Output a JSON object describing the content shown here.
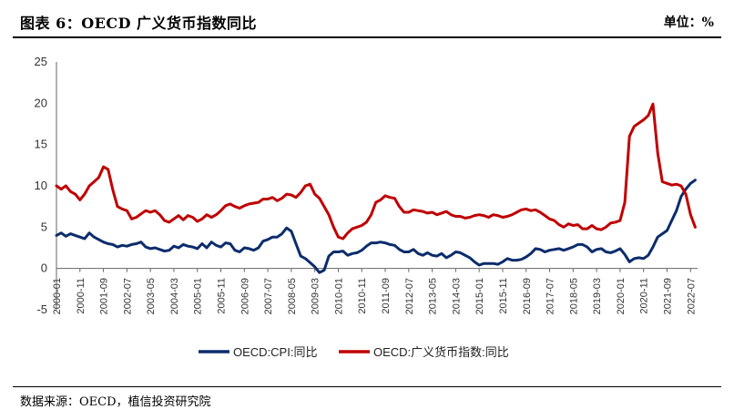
{
  "header": {
    "title": "图表 6：OECD 广义货币指数同比",
    "unit": "单位：%"
  },
  "footer": {
    "source": "数据来源：OECD，植信投资研究院"
  },
  "chart_data": {
    "type": "line",
    "title": "图表 6：OECD 广义货币指数同比",
    "ylim": [
      -5,
      25
    ],
    "yticks": [
      -5,
      0,
      5,
      10,
      15,
      20,
      25
    ],
    "grid": false,
    "legend_position": "bottom",
    "x_tick_labels": [
      "2000-01",
      "2000-11",
      "2001-09",
      "2002-07",
      "2003-05",
      "2004-03",
      "2005-01",
      "2005-11",
      "2006-09",
      "2007-07",
      "2008-05",
      "2009-03",
      "2010-01",
      "2010-11",
      "2011-09",
      "2012-07",
      "2013-05",
      "2014-03",
      "2015-01",
      "2015-11",
      "2016-09",
      "2017-07",
      "2018-05",
      "2019-03",
      "2020-01",
      "2020-11",
      "2021-09",
      "2022-07"
    ],
    "series": [
      {
        "name": "OECD:CPI:同比",
        "color": "#0c2c6b",
        "points": [
          [
            "2000-01",
            4.0
          ],
          [
            "2000-03",
            4.3
          ],
          [
            "2000-05",
            3.9
          ],
          [
            "2000-07",
            4.2
          ],
          [
            "2000-09",
            4.0
          ],
          [
            "2000-11",
            3.8
          ],
          [
            "2001-01",
            3.6
          ],
          [
            "2001-03",
            4.3
          ],
          [
            "2001-05",
            3.8
          ],
          [
            "2001-07",
            3.5
          ],
          [
            "2001-09",
            3.2
          ],
          [
            "2001-11",
            3.0
          ],
          [
            "2002-01",
            2.9
          ],
          [
            "2002-03",
            2.6
          ],
          [
            "2002-05",
            2.8
          ],
          [
            "2002-07",
            2.7
          ],
          [
            "2002-09",
            2.9
          ],
          [
            "2002-11",
            3.0
          ],
          [
            "2003-01",
            3.2
          ],
          [
            "2003-03",
            2.6
          ],
          [
            "2003-05",
            2.4
          ],
          [
            "2003-07",
            2.5
          ],
          [
            "2003-09",
            2.3
          ],
          [
            "2003-11",
            2.1
          ],
          [
            "2004-01",
            2.2
          ],
          [
            "2004-03",
            2.7
          ],
          [
            "2004-05",
            2.5
          ],
          [
            "2004-07",
            2.9
          ],
          [
            "2004-09",
            2.7
          ],
          [
            "2004-11",
            2.6
          ],
          [
            "2005-01",
            2.4
          ],
          [
            "2005-03",
            3.0
          ],
          [
            "2005-05",
            2.5
          ],
          [
            "2005-07",
            3.2
          ],
          [
            "2005-09",
            2.8
          ],
          [
            "2005-11",
            2.6
          ],
          [
            "2006-01",
            3.1
          ],
          [
            "2006-03",
            3.0
          ],
          [
            "2006-05",
            2.2
          ],
          [
            "2006-07",
            2.0
          ],
          [
            "2006-09",
            2.5
          ],
          [
            "2006-11",
            2.4
          ],
          [
            "2007-01",
            2.2
          ],
          [
            "2007-03",
            2.5
          ],
          [
            "2007-05",
            3.3
          ],
          [
            "2007-07",
            3.5
          ],
          [
            "2007-09",
            3.8
          ],
          [
            "2007-11",
            3.8
          ],
          [
            "2008-01",
            4.2
          ],
          [
            "2008-03",
            4.9
          ],
          [
            "2008-05",
            4.5
          ],
          [
            "2008-07",
            3.0
          ],
          [
            "2008-09",
            1.5
          ],
          [
            "2008-11",
            1.2
          ],
          [
            "2009-01",
            0.7
          ],
          [
            "2009-03",
            0.2
          ],
          [
            "2009-05",
            -0.5
          ],
          [
            "2009-07",
            -0.2
          ],
          [
            "2009-09",
            1.5
          ],
          [
            "2009-11",
            2.0
          ],
          [
            "2010-01",
            2.0
          ],
          [
            "2010-03",
            2.1
          ],
          [
            "2010-05",
            1.6
          ],
          [
            "2010-07",
            1.8
          ],
          [
            "2010-09",
            1.9
          ],
          [
            "2010-11",
            2.2
          ],
          [
            "2011-01",
            2.7
          ],
          [
            "2011-03",
            3.1
          ],
          [
            "2011-05",
            3.1
          ],
          [
            "2011-07",
            3.2
          ],
          [
            "2011-09",
            3.1
          ],
          [
            "2011-11",
            2.9
          ],
          [
            "2012-01",
            2.8
          ],
          [
            "2012-03",
            2.3
          ],
          [
            "2012-05",
            2.0
          ],
          [
            "2012-07",
            2.0
          ],
          [
            "2012-09",
            2.3
          ],
          [
            "2012-11",
            1.8
          ],
          [
            "2013-01",
            1.6
          ],
          [
            "2013-03",
            1.9
          ],
          [
            "2013-05",
            1.6
          ],
          [
            "2013-07",
            1.5
          ],
          [
            "2013-09",
            1.8
          ],
          [
            "2013-11",
            1.3
          ],
          [
            "2014-01",
            1.6
          ],
          [
            "2014-03",
            2.0
          ],
          [
            "2014-05",
            1.9
          ],
          [
            "2014-07",
            1.6
          ],
          [
            "2014-09",
            1.3
          ],
          [
            "2014-11",
            0.8
          ],
          [
            "2015-01",
            0.4
          ],
          [
            "2015-03",
            0.6
          ],
          [
            "2015-05",
            0.6
          ],
          [
            "2015-07",
            0.6
          ],
          [
            "2015-09",
            0.5
          ],
          [
            "2015-11",
            0.8
          ],
          [
            "2016-01",
            1.2
          ],
          [
            "2016-03",
            1.0
          ],
          [
            "2016-05",
            1.0
          ],
          [
            "2016-07",
            1.1
          ],
          [
            "2016-09",
            1.4
          ],
          [
            "2016-11",
            1.8
          ],
          [
            "2017-01",
            2.4
          ],
          [
            "2017-03",
            2.3
          ],
          [
            "2017-05",
            2.0
          ],
          [
            "2017-07",
            2.2
          ],
          [
            "2017-09",
            2.3
          ],
          [
            "2017-11",
            2.4
          ],
          [
            "2018-01",
            2.2
          ],
          [
            "2018-03",
            2.4
          ],
          [
            "2018-05",
            2.6
          ],
          [
            "2018-07",
            2.9
          ],
          [
            "2018-09",
            2.9
          ],
          [
            "2018-11",
            2.6
          ],
          [
            "2019-01",
            2.0
          ],
          [
            "2019-03",
            2.3
          ],
          [
            "2019-05",
            2.4
          ],
          [
            "2019-07",
            2.0
          ],
          [
            "2019-09",
            1.9
          ],
          [
            "2019-11",
            2.1
          ],
          [
            "2020-01",
            2.4
          ],
          [
            "2020-03",
            1.7
          ],
          [
            "2020-05",
            0.8
          ],
          [
            "2020-07",
            1.2
          ],
          [
            "2020-09",
            1.3
          ],
          [
            "2020-11",
            1.2
          ],
          [
            "2021-01",
            1.6
          ],
          [
            "2021-03",
            2.6
          ],
          [
            "2021-05",
            3.8
          ],
          [
            "2021-07",
            4.2
          ],
          [
            "2021-09",
            4.6
          ],
          [
            "2021-11",
            5.8
          ],
          [
            "2022-01",
            7.0
          ],
          [
            "2022-03",
            8.7
          ],
          [
            "2022-05",
            9.6
          ],
          [
            "2022-07",
            10.3
          ],
          [
            "2022-09",
            10.7
          ]
        ]
      },
      {
        "name": "OECD:广义货币指数:同比",
        "color": "#c00000",
        "points": [
          [
            "2000-01",
            10.0
          ],
          [
            "2000-03",
            9.6
          ],
          [
            "2000-05",
            10.0
          ],
          [
            "2000-07",
            9.3
          ],
          [
            "2000-09",
            9.0
          ],
          [
            "2000-11",
            8.3
          ],
          [
            "2001-01",
            9.0
          ],
          [
            "2001-03",
            10.0
          ],
          [
            "2001-05",
            10.5
          ],
          [
            "2001-07",
            11.0
          ],
          [
            "2001-09",
            12.3
          ],
          [
            "2001-11",
            12.0
          ],
          [
            "2002-01",
            9.5
          ],
          [
            "2002-03",
            7.5
          ],
          [
            "2002-05",
            7.2
          ],
          [
            "2002-07",
            7.0
          ],
          [
            "2002-09",
            6.0
          ],
          [
            "2002-11",
            6.2
          ],
          [
            "2003-01",
            6.6
          ],
          [
            "2003-03",
            7.0
          ],
          [
            "2003-05",
            6.8
          ],
          [
            "2003-07",
            7.0
          ],
          [
            "2003-09",
            6.5
          ],
          [
            "2003-11",
            5.8
          ],
          [
            "2004-01",
            5.6
          ],
          [
            "2004-03",
            6.0
          ],
          [
            "2004-05",
            6.4
          ],
          [
            "2004-07",
            5.9
          ],
          [
            "2004-09",
            6.4
          ],
          [
            "2004-11",
            6.2
          ],
          [
            "2005-01",
            5.7
          ],
          [
            "2005-03",
            6.0
          ],
          [
            "2005-05",
            6.5
          ],
          [
            "2005-07",
            6.2
          ],
          [
            "2005-09",
            6.5
          ],
          [
            "2005-11",
            7.0
          ],
          [
            "2006-01",
            7.6
          ],
          [
            "2006-03",
            7.8
          ],
          [
            "2006-05",
            7.5
          ],
          [
            "2006-07",
            7.3
          ],
          [
            "2006-09",
            7.6
          ],
          [
            "2006-11",
            7.8
          ],
          [
            "2007-01",
            7.9
          ],
          [
            "2007-03",
            8.0
          ],
          [
            "2007-05",
            8.4
          ],
          [
            "2007-07",
            8.4
          ],
          [
            "2007-09",
            8.6
          ],
          [
            "2007-11",
            8.2
          ],
          [
            "2008-01",
            8.5
          ],
          [
            "2008-03",
            9.0
          ],
          [
            "2008-05",
            8.9
          ],
          [
            "2008-07",
            8.6
          ],
          [
            "2008-09",
            9.2
          ],
          [
            "2008-11",
            10.0
          ],
          [
            "2009-01",
            10.2
          ],
          [
            "2009-03",
            9.0
          ],
          [
            "2009-05",
            8.5
          ],
          [
            "2009-07",
            7.5
          ],
          [
            "2009-09",
            6.5
          ],
          [
            "2009-11",
            5.0
          ],
          [
            "2010-01",
            3.8
          ],
          [
            "2010-03",
            3.6
          ],
          [
            "2010-05",
            4.3
          ],
          [
            "2010-07",
            4.8
          ],
          [
            "2010-09",
            5.0
          ],
          [
            "2010-11",
            5.2
          ],
          [
            "2011-01",
            5.6
          ],
          [
            "2011-03",
            6.5
          ],
          [
            "2011-05",
            8.0
          ],
          [
            "2011-07",
            8.3
          ],
          [
            "2011-09",
            8.8
          ],
          [
            "2011-11",
            8.6
          ],
          [
            "2012-01",
            8.5
          ],
          [
            "2012-03",
            7.5
          ],
          [
            "2012-05",
            6.8
          ],
          [
            "2012-07",
            6.8
          ],
          [
            "2012-09",
            7.1
          ],
          [
            "2012-11",
            7.0
          ],
          [
            "2013-01",
            6.9
          ],
          [
            "2013-03",
            6.7
          ],
          [
            "2013-05",
            6.8
          ],
          [
            "2013-07",
            6.5
          ],
          [
            "2013-09",
            6.7
          ],
          [
            "2013-11",
            6.9
          ],
          [
            "2014-01",
            6.5
          ],
          [
            "2014-03",
            6.3
          ],
          [
            "2014-05",
            6.3
          ],
          [
            "2014-07",
            6.1
          ],
          [
            "2014-09",
            6.2
          ],
          [
            "2014-11",
            6.4
          ],
          [
            "2015-01",
            6.5
          ],
          [
            "2015-03",
            6.4
          ],
          [
            "2015-05",
            6.2
          ],
          [
            "2015-07",
            6.5
          ],
          [
            "2015-09",
            6.4
          ],
          [
            "2015-11",
            6.2
          ],
          [
            "2016-01",
            6.3
          ],
          [
            "2016-03",
            6.5
          ],
          [
            "2016-05",
            6.8
          ],
          [
            "2016-07",
            7.1
          ],
          [
            "2016-09",
            7.2
          ],
          [
            "2016-11",
            7.0
          ],
          [
            "2017-01",
            7.1
          ],
          [
            "2017-03",
            6.8
          ],
          [
            "2017-05",
            6.4
          ],
          [
            "2017-07",
            6.0
          ],
          [
            "2017-09",
            5.8
          ],
          [
            "2017-11",
            5.3
          ],
          [
            "2018-01",
            5.0
          ],
          [
            "2018-03",
            5.4
          ],
          [
            "2018-05",
            5.2
          ],
          [
            "2018-07",
            5.3
          ],
          [
            "2018-09",
            4.8
          ],
          [
            "2018-11",
            4.8
          ],
          [
            "2019-01",
            5.2
          ],
          [
            "2019-03",
            4.8
          ],
          [
            "2019-05",
            4.7
          ],
          [
            "2019-07",
            5.0
          ],
          [
            "2019-09",
            5.5
          ],
          [
            "2019-11",
            5.6
          ],
          [
            "2020-01",
            5.8
          ],
          [
            "2020-03",
            8.0
          ],
          [
            "2020-05",
            16.0
          ],
          [
            "2020-07",
            17.2
          ],
          [
            "2020-09",
            17.6
          ],
          [
            "2020-11",
            18.0
          ],
          [
            "2021-01",
            18.5
          ],
          [
            "2021-03",
            19.9
          ],
          [
            "2021-05",
            14.0
          ],
          [
            "2021-07",
            10.5
          ],
          [
            "2021-09",
            10.3
          ],
          [
            "2021-11",
            10.1
          ],
          [
            "2022-01",
            10.2
          ],
          [
            "2022-03",
            10.0
          ],
          [
            "2022-05",
            9.0
          ],
          [
            "2022-07",
            6.5
          ],
          [
            "2022-09",
            5.0
          ]
        ]
      }
    ]
  }
}
